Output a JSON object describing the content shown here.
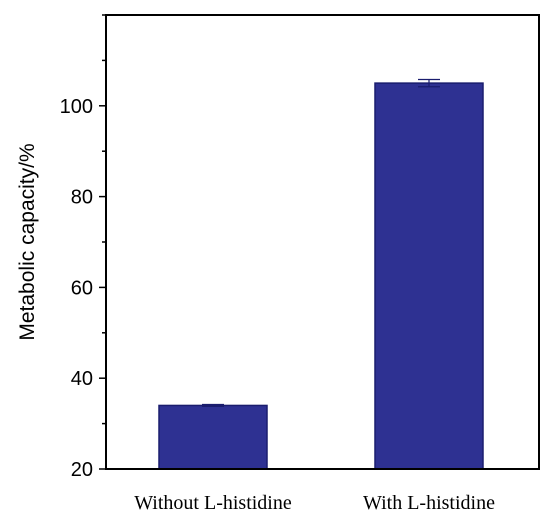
{
  "chart_data": {
    "type": "bar",
    "categories": [
      "Without L-histidine",
      "With L-histidine"
    ],
    "values": [
      34,
      105
    ],
    "errors": [
      0.2,
      0.8
    ],
    "xlabel": "",
    "ylabel": "Metabolic capacity/%",
    "ylim": [
      20,
      120
    ],
    "yticks": [
      20,
      40,
      60,
      80,
      100
    ],
    "y_minor_step": 10,
    "grid": false,
    "legend": "none",
    "bar_color": "#2e3192",
    "bar_edge_color": "#1a1d6e"
  }
}
